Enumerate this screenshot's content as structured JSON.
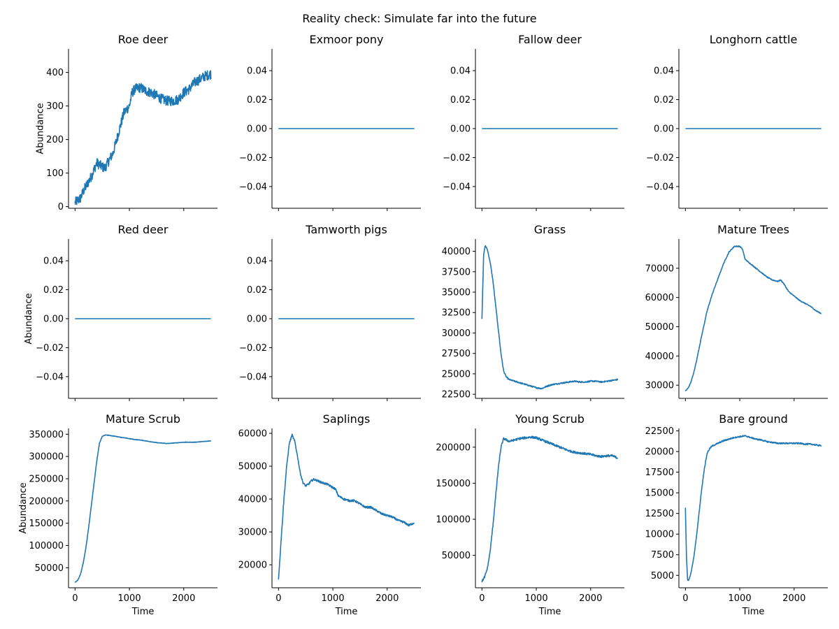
{
  "figure": {
    "suptitle": "Reality check: Simulate far into the future"
  },
  "chart_data": [
    {
      "type": "line",
      "title": "Roe deer",
      "xlabel": "",
      "ylabel": "Abundance",
      "xlim": [
        -120,
        2620
      ],
      "ylim": [
        -5,
        470
      ],
      "xticks": [],
      "yticks": [
        0,
        100,
        200,
        300,
        400
      ],
      "ytick_labels": [
        "0",
        "100",
        "200",
        "300",
        "400"
      ],
      "noise": 15,
      "x": [
        0,
        100,
        150,
        200,
        300,
        400,
        450,
        500,
        550,
        600,
        700,
        800,
        900,
        1000,
        1050,
        1100,
        1200,
        1300,
        1400,
        1500,
        1600,
        1700,
        1800,
        1900,
        2000,
        2100,
        2200,
        2300,
        2400,
        2500
      ],
      "y": [
        12,
        25,
        45,
        60,
        90,
        130,
        125,
        118,
        115,
        130,
        160,
        220,
        280,
        300,
        340,
        350,
        355,
        345,
        340,
        330,
        320,
        315,
        315,
        320,
        340,
        350,
        370,
        380,
        390,
        395
      ]
    },
    {
      "type": "line",
      "title": "Exmoor pony",
      "xlabel": "",
      "ylabel": "",
      "xlim": [
        -120,
        2620
      ],
      "ylim": [
        -0.055,
        0.055
      ],
      "xticks": [],
      "yticks": [
        -0.04,
        -0.02,
        0.0,
        0.02,
        0.04
      ],
      "ytick_labels": [
        "−0.04",
        "−0.02",
        "0.00",
        "0.02",
        "0.04"
      ],
      "noise": 0,
      "x": [
        0,
        2500
      ],
      "y": [
        0,
        0
      ]
    },
    {
      "type": "line",
      "title": "Fallow deer",
      "xlabel": "",
      "ylabel": "",
      "xlim": [
        -120,
        2620
      ],
      "ylim": [
        -0.055,
        0.055
      ],
      "xticks": [],
      "yticks": [
        -0.04,
        -0.02,
        0.0,
        0.02,
        0.04
      ],
      "ytick_labels": [
        "−0.04",
        "−0.02",
        "0.00",
        "0.02",
        "0.04"
      ],
      "noise": 0,
      "x": [
        0,
        2500
      ],
      "y": [
        0,
        0
      ]
    },
    {
      "type": "line",
      "title": "Longhorn cattle",
      "xlabel": "",
      "ylabel": "",
      "xlim": [
        -120,
        2620
      ],
      "ylim": [
        -0.055,
        0.055
      ],
      "xticks": [],
      "yticks": [
        -0.04,
        -0.02,
        0.0,
        0.02,
        0.04
      ],
      "ytick_labels": [
        "−0.04",
        "−0.02",
        "0.00",
        "0.02",
        "0.04"
      ],
      "noise": 0,
      "x": [
        0,
        2500
      ],
      "y": [
        0,
        0
      ]
    },
    {
      "type": "line",
      "title": "Red deer",
      "xlabel": "",
      "ylabel": "Abundance",
      "xlim": [
        -120,
        2620
      ],
      "ylim": [
        -0.055,
        0.055
      ],
      "xticks": [],
      "yticks": [
        -0.04,
        -0.02,
        0.0,
        0.02,
        0.04
      ],
      "ytick_labels": [
        "−0.04",
        "−0.02",
        "0.00",
        "0.02",
        "0.04"
      ],
      "noise": 0,
      "x": [
        0,
        2500
      ],
      "y": [
        0,
        0
      ]
    },
    {
      "type": "line",
      "title": "Tamworth pigs",
      "xlabel": "",
      "ylabel": "",
      "xlim": [
        -120,
        2620
      ],
      "ylim": [
        -0.055,
        0.055
      ],
      "xticks": [],
      "yticks": [
        -0.04,
        -0.02,
        0.0,
        0.02,
        0.04
      ],
      "ytick_labels": [
        "−0.04",
        "−0.02",
        "0.00",
        "0.02",
        "0.04"
      ],
      "noise": 0,
      "x": [
        0,
        2500
      ],
      "y": [
        0,
        0
      ]
    },
    {
      "type": "line",
      "title": "Grass",
      "xlabel": "",
      "ylabel": "",
      "xlim": [
        -120,
        2620
      ],
      "ylim": [
        22000,
        41500
      ],
      "xticks": [],
      "yticks": [
        22500,
        25000,
        27500,
        30000,
        32500,
        35000,
        37500,
        40000
      ],
      "ytick_labels": [
        "22500",
        "25000",
        "27500",
        "30000",
        "32500",
        "35000",
        "37500",
        "40000"
      ],
      "noise": 80,
      "x": [
        0,
        30,
        60,
        100,
        150,
        200,
        250,
        300,
        350,
        400,
        450,
        500,
        600,
        700,
        800,
        900,
        1000,
        1100,
        1200,
        1300,
        1400,
        1500,
        1600,
        1700,
        1800,
        1900,
        2000,
        2100,
        2200,
        2300,
        2400,
        2500
      ],
      "y": [
        31700,
        39500,
        40700,
        40200,
        38700,
        36500,
        33500,
        30500,
        27500,
        25300,
        24600,
        24300,
        24100,
        23900,
        23700,
        23500,
        23300,
        23200,
        23500,
        23700,
        23800,
        23900,
        24000,
        24100,
        24000,
        24000,
        24100,
        24100,
        24000,
        24100,
        24200,
        24300
      ]
    },
    {
      "type": "line",
      "title": "Mature Trees",
      "xlabel": "",
      "ylabel": "",
      "xlim": [
        -120,
        2620
      ],
      "ylim": [
        25500,
        80000
      ],
      "xticks": [],
      "yticks": [
        30000,
        40000,
        50000,
        60000,
        70000
      ],
      "ytick_labels": [
        "30000",
        "40000",
        "50000",
        "60000",
        "70000"
      ],
      "noise": 150,
      "x": [
        0,
        50,
        100,
        150,
        200,
        300,
        400,
        500,
        600,
        700,
        800,
        900,
        1000,
        1050,
        1100,
        1200,
        1300,
        1400,
        1500,
        1600,
        1700,
        1750,
        1800,
        1900,
        2000,
        2100,
        2200,
        2300,
        2400,
        2500
      ],
      "y": [
        28000,
        29000,
        31000,
        34000,
        38000,
        47000,
        55500,
        61500,
        66500,
        71500,
        75500,
        77500,
        77500,
        76500,
        73000,
        71500,
        70000,
        68500,
        67000,
        66000,
        65500,
        66000,
        65000,
        62000,
        60500,
        59000,
        58000,
        57000,
        55500,
        54500
      ]
    },
    {
      "type": "line",
      "title": "Mature Scrub",
      "xlabel": "Time",
      "ylabel": "Abundance",
      "xlim": [
        -120,
        2620
      ],
      "ylim": [
        5000,
        363000
      ],
      "xticks": [
        0,
        1000,
        2000
      ],
      "xtick_labels": [
        "0",
        "1000",
        "2000"
      ],
      "yticks": [
        50000,
        100000,
        150000,
        200000,
        250000,
        300000,
        350000
      ],
      "ytick_labels": [
        "50000",
        "100000",
        "150000",
        "200000",
        "250000",
        "300000",
        "350000"
      ],
      "noise": 500,
      "x": [
        0,
        50,
        100,
        150,
        200,
        250,
        300,
        350,
        400,
        450,
        500,
        550,
        600,
        700,
        800,
        900,
        1000,
        1100,
        1200,
        1300,
        1400,
        1500,
        1600,
        1700,
        1800,
        1900,
        2000,
        2100,
        2200,
        2300,
        2400,
        2500
      ],
      "y": [
        17000,
        22000,
        35000,
        60000,
        95000,
        140000,
        190000,
        240000,
        290000,
        330000,
        345000,
        348000,
        348000,
        346000,
        344000,
        342000,
        340000,
        338000,
        337000,
        335000,
        333000,
        331000,
        330000,
        329000,
        330000,
        331000,
        332000,
        332000,
        332000,
        333000,
        334000,
        335000
      ]
    },
    {
      "type": "line",
      "title": "Saplings",
      "xlabel": "Time",
      "ylabel": "",
      "xlim": [
        -120,
        2620
      ],
      "ylim": [
        13000,
        61500
      ],
      "xticks": [
        0,
        1000,
        2000
      ],
      "xtick_labels": [
        "0",
        "1000",
        "2000"
      ],
      "yticks": [
        20000,
        30000,
        40000,
        50000,
        60000
      ],
      "ytick_labels": [
        "20000",
        "30000",
        "40000",
        "50000",
        "60000"
      ],
      "noise": 300,
      "x": [
        0,
        50,
        100,
        150,
        200,
        250,
        300,
        350,
        400,
        450,
        500,
        550,
        600,
        650,
        700,
        800,
        900,
        1000,
        1050,
        1100,
        1200,
        1300,
        1400,
        1500,
        1600,
        1700,
        1800,
        1900,
        2000,
        2100,
        2200,
        2300,
        2400,
        2500
      ],
      "y": [
        15500,
        28000,
        40000,
        50000,
        57000,
        59500,
        57500,
        53000,
        48000,
        45000,
        44000,
        44500,
        45500,
        46000,
        45700,
        45000,
        44500,
        43500,
        43000,
        41000,
        40000,
        39500,
        39500,
        38500,
        37500,
        37500,
        36500,
        35500,
        35000,
        34500,
        33500,
        33000,
        32000,
        32800
      ]
    },
    {
      "type": "line",
      "title": "Young Scrub",
      "xlabel": "Time",
      "ylabel": "",
      "xlim": [
        -120,
        2620
      ],
      "ylim": [
        5000,
        226000
      ],
      "xticks": [
        0,
        1000,
        2000
      ],
      "xtick_labels": [
        "0",
        "1000",
        "2000"
      ],
      "yticks": [
        50000,
        100000,
        150000,
        200000
      ],
      "ytick_labels": [
        "50000",
        "100000",
        "150000",
        "200000"
      ],
      "noise": 1500,
      "x": [
        0,
        50,
        100,
        150,
        200,
        250,
        300,
        350,
        400,
        450,
        500,
        600,
        700,
        800,
        900,
        1000,
        1100,
        1200,
        1300,
        1400,
        1500,
        1600,
        1700,
        1800,
        1900,
        2000,
        2100,
        2200,
        2300,
        2400,
        2500
      ],
      "y": [
        14000,
        20000,
        32000,
        55000,
        90000,
        130000,
        170000,
        200000,
        212000,
        210000,
        208000,
        210000,
        212000,
        213000,
        214000,
        213000,
        210000,
        207000,
        204000,
        201000,
        198000,
        195000,
        193000,
        192000,
        191000,
        190000,
        188000,
        187000,
        188000,
        188000,
        185000
      ]
    },
    {
      "type": "line",
      "title": "Bare ground",
      "xlabel": "Time",
      "ylabel": "",
      "xlim": [
        -120,
        2620
      ],
      "ylim": [
        3500,
        22800
      ],
      "xticks": [
        0,
        1000,
        2000
      ],
      "xtick_labels": [
        "0",
        "1000",
        "2000"
      ],
      "yticks": [
        5000,
        7500,
        10000,
        12500,
        15000,
        17500,
        20000,
        22500
      ],
      "ytick_labels": [
        "5000",
        "7500",
        "10000",
        "12500",
        "15000",
        "17500",
        "20000",
        "22500"
      ],
      "noise": 80,
      "x": [
        0,
        20,
        40,
        60,
        100,
        150,
        200,
        250,
        300,
        350,
        400,
        450,
        500,
        600,
        700,
        800,
        900,
        1000,
        1100,
        1200,
        1300,
        1400,
        1500,
        1600,
        1700,
        1800,
        1900,
        2000,
        2100,
        2200,
        2300,
        2400,
        2500
      ],
      "y": [
        13200,
        7000,
        4500,
        4400,
        5200,
        7000,
        9500,
        12500,
        15500,
        18000,
        19800,
        20400,
        20700,
        21000,
        21300,
        21500,
        21700,
        21800,
        21900,
        21700,
        21500,
        21400,
        21200,
        21100,
        21000,
        21000,
        21000,
        21000,
        21000,
        20900,
        20900,
        20800,
        20700
      ]
    }
  ]
}
